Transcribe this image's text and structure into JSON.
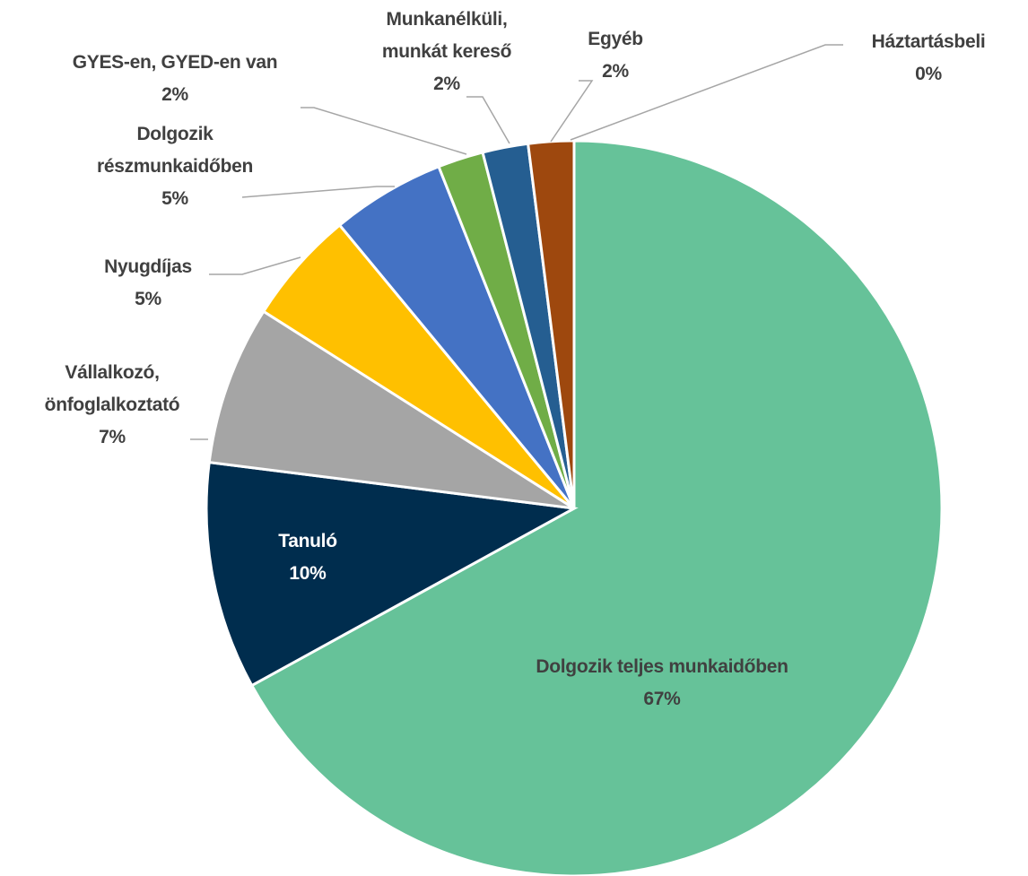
{
  "chart_data": {
    "type": "pie",
    "categories": [
      "Dolgozik teljes munkaidőben",
      "Tanuló",
      "Vállalkozó, önfoglalkoztató",
      "Nyugdíjas",
      "Dolgozik részmunkaidőben",
      "GYES-en, GYED-en van",
      "Munkanélküli, munkát kereső",
      "Egyéb",
      "Háztartásbeli"
    ],
    "values": [
      67,
      10,
      7,
      5,
      5,
      2,
      2,
      2,
      0
    ],
    "value_labels": [
      "67%",
      "10%",
      "7%",
      "5%",
      "5%",
      "2%",
      "2%",
      "2%",
      "0%"
    ],
    "colors": [
      "#66c299",
      "#002d4e",
      "#a5a5a5",
      "#ffc000",
      "#4472c4",
      "#70ad47",
      "#255e91",
      "#9e480e",
      "#636363"
    ]
  }
}
